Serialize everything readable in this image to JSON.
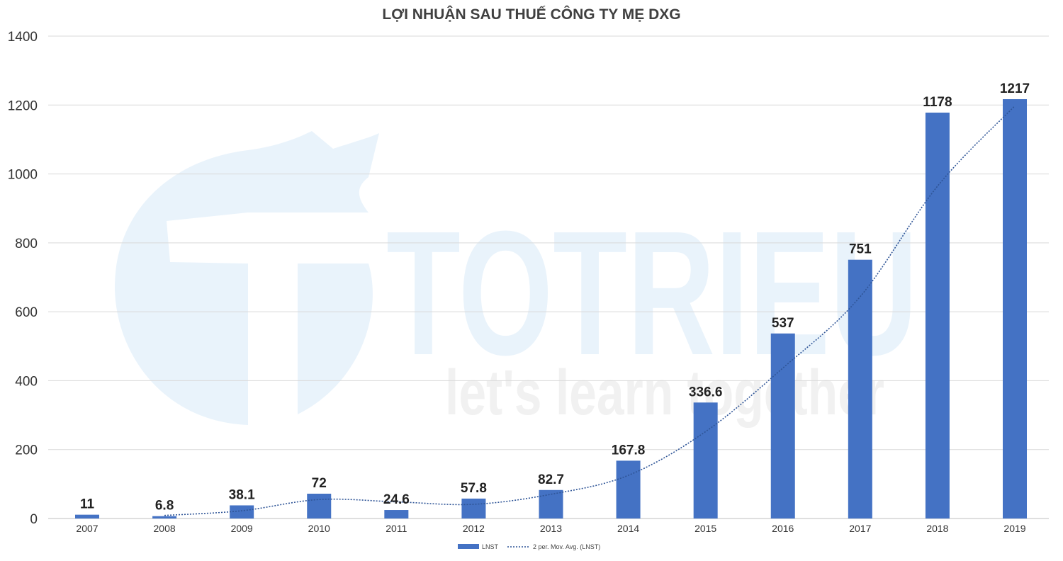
{
  "colors": {
    "bar": "#4472c4",
    "trendline": "#2f5597",
    "grid": "#d9d9d9",
    "watermark": "#e9f3fb"
  },
  "watermark": {
    "brand": "TOTRIEU",
    "tagline": "let's learn together"
  },
  "chart_data": {
    "type": "bar",
    "title": "LỢI NHUẬN SAU THUẾ CÔNG TY MẸ DXG",
    "categories": [
      "2007",
      "2008",
      "2009",
      "2010",
      "2011",
      "2012",
      "2013",
      "2014",
      "2015",
      "2016",
      "2017",
      "2018",
      "2019"
    ],
    "series": [
      {
        "name": "LNST",
        "values": [
          11,
          6.8,
          38.1,
          72,
          24.6,
          57.8,
          82.7,
          167.8,
          336.6,
          537,
          751,
          1178,
          1217
        ],
        "labels": [
          "11",
          "6.8",
          "38.1",
          "72",
          "24.6",
          "57.8",
          "82.7",
          "167.8",
          "336.6",
          "537",
          "751",
          "1178",
          "1217"
        ]
      }
    ],
    "trendline": {
      "name": "2 per. Mov. Avg. (LNST)",
      "type": "moving-average",
      "period": 2
    },
    "ylim": [
      0,
      1400
    ],
    "yticks": [
      0,
      200,
      400,
      600,
      800,
      1000,
      1200,
      1400
    ],
    "grid": true,
    "legend": "bottom-center"
  }
}
